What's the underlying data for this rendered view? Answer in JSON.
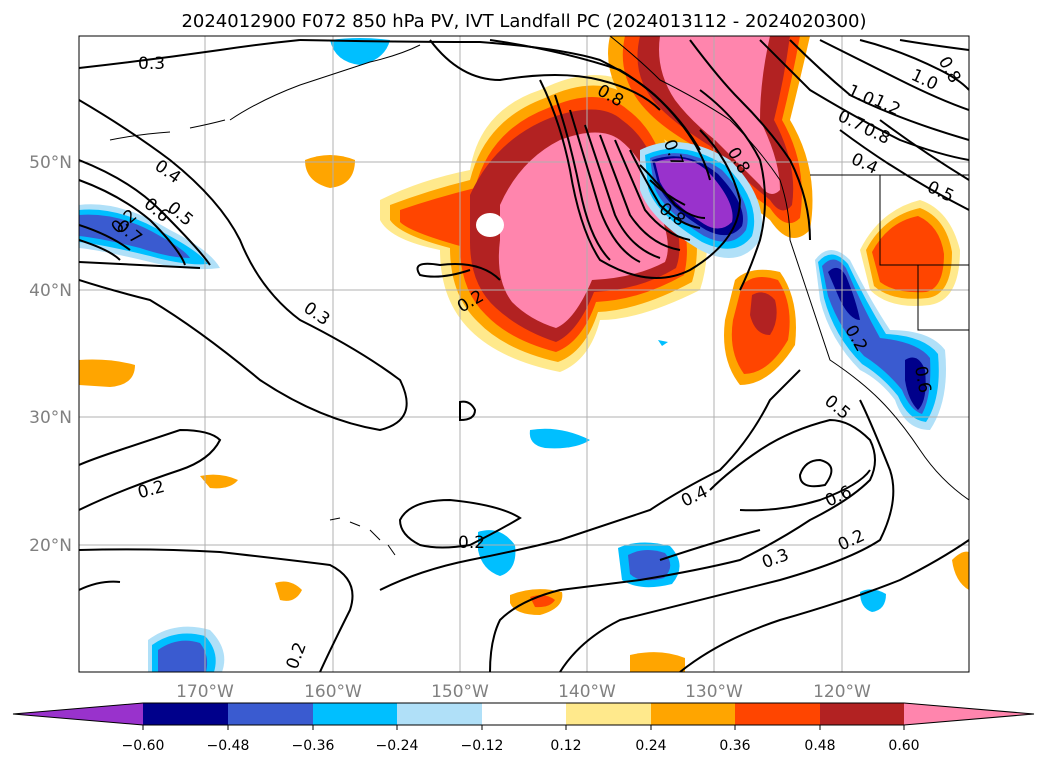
{
  "title": "2024012900 F072 850 hPa PV, IVT Landfall PC (2024013112 - 2024020300)",
  "lon_ticks": [
    "170°W",
    "160°W",
    "150°W",
    "140°W",
    "130°W",
    "120°W"
  ],
  "lat_ticks": [
    "50°N",
    "40°N",
    "30°N",
    "20°N"
  ],
  "colorbar": {
    "tick_labels": [
      "−0.60",
      "−0.48",
      "−0.36",
      "−0.24",
      "−0.12",
      "0.12",
      "0.24",
      "0.36",
      "0.48",
      "0.60"
    ],
    "colors": {
      "lt_neg060": "#9932cc",
      "neg060_neg048": "#00008b",
      "neg048_neg036": "#3a5bd0",
      "neg036_neg024": "#00bfff",
      "neg024_neg012": "#b0e0f8",
      "neg012_012": "#ffffff",
      "p012_024": "#ffe98c",
      "p024_036": "#ffa500",
      "p036_048": "#ff4500",
      "p048_060": "#b22222",
      "gt_060": "#ff85ad"
    }
  },
  "contour_labels": [
    "0.3",
    "0.4",
    "0.5",
    "0.6",
    "0.7",
    "0.3",
    "0.2",
    "0.8",
    "0.7",
    "0.8",
    "1.0",
    "1.2",
    "0.8",
    "0.7",
    "0.8",
    "0.4",
    "0.5",
    "1.0",
    "0.8",
    "0.2",
    "0.2",
    "0.2",
    "0.4",
    "0.6",
    "0.5",
    "0.6",
    "0.3",
    "0.2",
    "0.2",
    "0.2"
  ]
}
